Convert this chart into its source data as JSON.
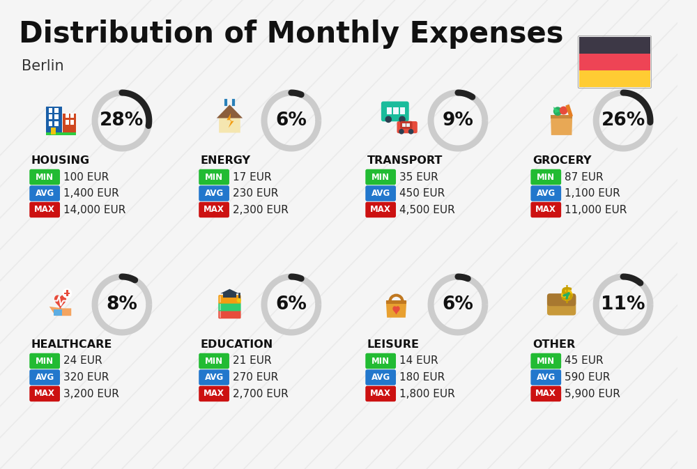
{
  "title": "Distribution of Monthly Expenses",
  "subtitle": "Berlin",
  "background_color": "#f5f5f5",
  "categories": [
    {
      "name": "HOUSING",
      "percent": 28,
      "min_val": "100 EUR",
      "avg_val": "1,400 EUR",
      "max_val": "14,000 EUR",
      "row": 0,
      "col": 0
    },
    {
      "name": "ENERGY",
      "percent": 6,
      "min_val": "17 EUR",
      "avg_val": "230 EUR",
      "max_val": "2,300 EUR",
      "row": 0,
      "col": 1
    },
    {
      "name": "TRANSPORT",
      "percent": 9,
      "min_val": "35 EUR",
      "avg_val": "450 EUR",
      "max_val": "4,500 EUR",
      "row": 0,
      "col": 2
    },
    {
      "name": "GROCERY",
      "percent": 26,
      "min_val": "87 EUR",
      "avg_val": "1,100 EUR",
      "max_val": "11,000 EUR",
      "row": 0,
      "col": 3
    },
    {
      "name": "HEALTHCARE",
      "percent": 8,
      "min_val": "24 EUR",
      "avg_val": "320 EUR",
      "max_val": "3,200 EUR",
      "row": 1,
      "col": 0
    },
    {
      "name": "EDUCATION",
      "percent": 6,
      "min_val": "21 EUR",
      "avg_val": "270 EUR",
      "max_val": "2,700 EUR",
      "row": 1,
      "col": 1
    },
    {
      "name": "LEISURE",
      "percent": 6,
      "min_val": "14 EUR",
      "avg_val": "180 EUR",
      "max_val": "1,800 EUR",
      "row": 1,
      "col": 2
    },
    {
      "name": "OTHER",
      "percent": 11,
      "min_val": "45 EUR",
      "avg_val": "590 EUR",
      "max_val": "5,900 EUR",
      "row": 1,
      "col": 3
    }
  ],
  "color_min": "#22bb33",
  "color_avg": "#2277cc",
  "color_max": "#cc1111",
  "arc_color_dark": "#222222",
  "arc_color_light": "#cccccc",
  "flag_colors": [
    "#3d3846",
    "#ee4455",
    "#ffcc33"
  ],
  "title_fontsize": 30,
  "subtitle_fontsize": 15,
  "category_fontsize": 11.5,
  "percent_fontsize": 19,
  "label_fontsize": 8.5,
  "value_fontsize": 11
}
